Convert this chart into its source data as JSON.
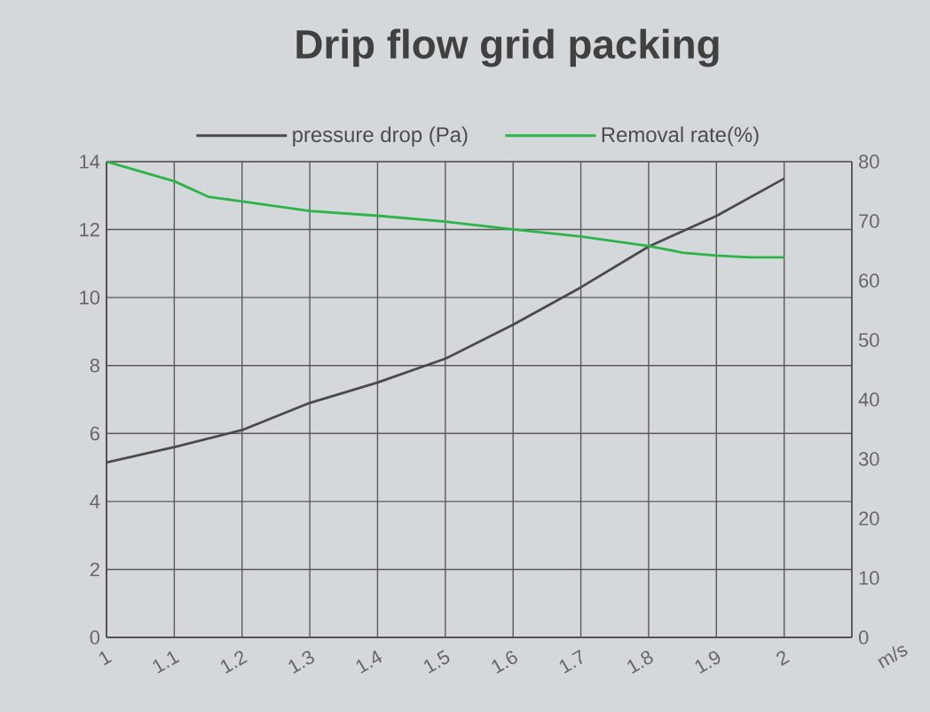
{
  "chart_data": {
    "type": "line",
    "title": "Drip flow grid packing",
    "xlabel": "m/s",
    "x": [
      1,
      1.1,
      1.2,
      1.3,
      1.4,
      1.5,
      1.6,
      1.7,
      1.8,
      1.9,
      2.0
    ],
    "series": [
      {
        "name": "pressure drop (Pa)",
        "color": "#4a4a4a",
        "values": [
          5.15,
          5.6,
          6.1,
          6.9,
          7.5,
          8.2,
          9.2,
          10.3,
          11.5,
          12.4,
          13.5
        ]
      },
      {
        "name": "Removal rate(%)",
        "color": "#2db34a",
        "axis": "y2",
        "x": [
          1,
          1.1,
          1.15,
          1.2,
          1.3,
          1.4,
          1.5,
          1.6,
          1.7,
          1.8,
          1.85,
          1.9,
          1.95,
          2.0
        ],
        "values": [
          80,
          76.7,
          74.1,
          73.3,
          71.7,
          70.9,
          69.9,
          68.6,
          67.4,
          65.8,
          64.7,
          64.2,
          63.9,
          63.9
        ]
      }
    ],
    "xlim": [
      1,
      2.1
    ],
    "xticks": [
      1,
      1.1,
      1.2,
      1.3,
      1.4,
      1.5,
      1.6,
      1.7,
      1.8,
      1.9,
      2
    ],
    "ylim": [
      0,
      14
    ],
    "yticks": [
      0,
      2,
      4,
      6,
      8,
      10,
      12,
      14
    ],
    "y2lim": [
      0,
      80
    ],
    "y2ticks": [
      0,
      10,
      20,
      30,
      40,
      50,
      60,
      70,
      80
    ],
    "grid": true,
    "legend": "top",
    "marker": "none",
    "line_style": "solid"
  }
}
